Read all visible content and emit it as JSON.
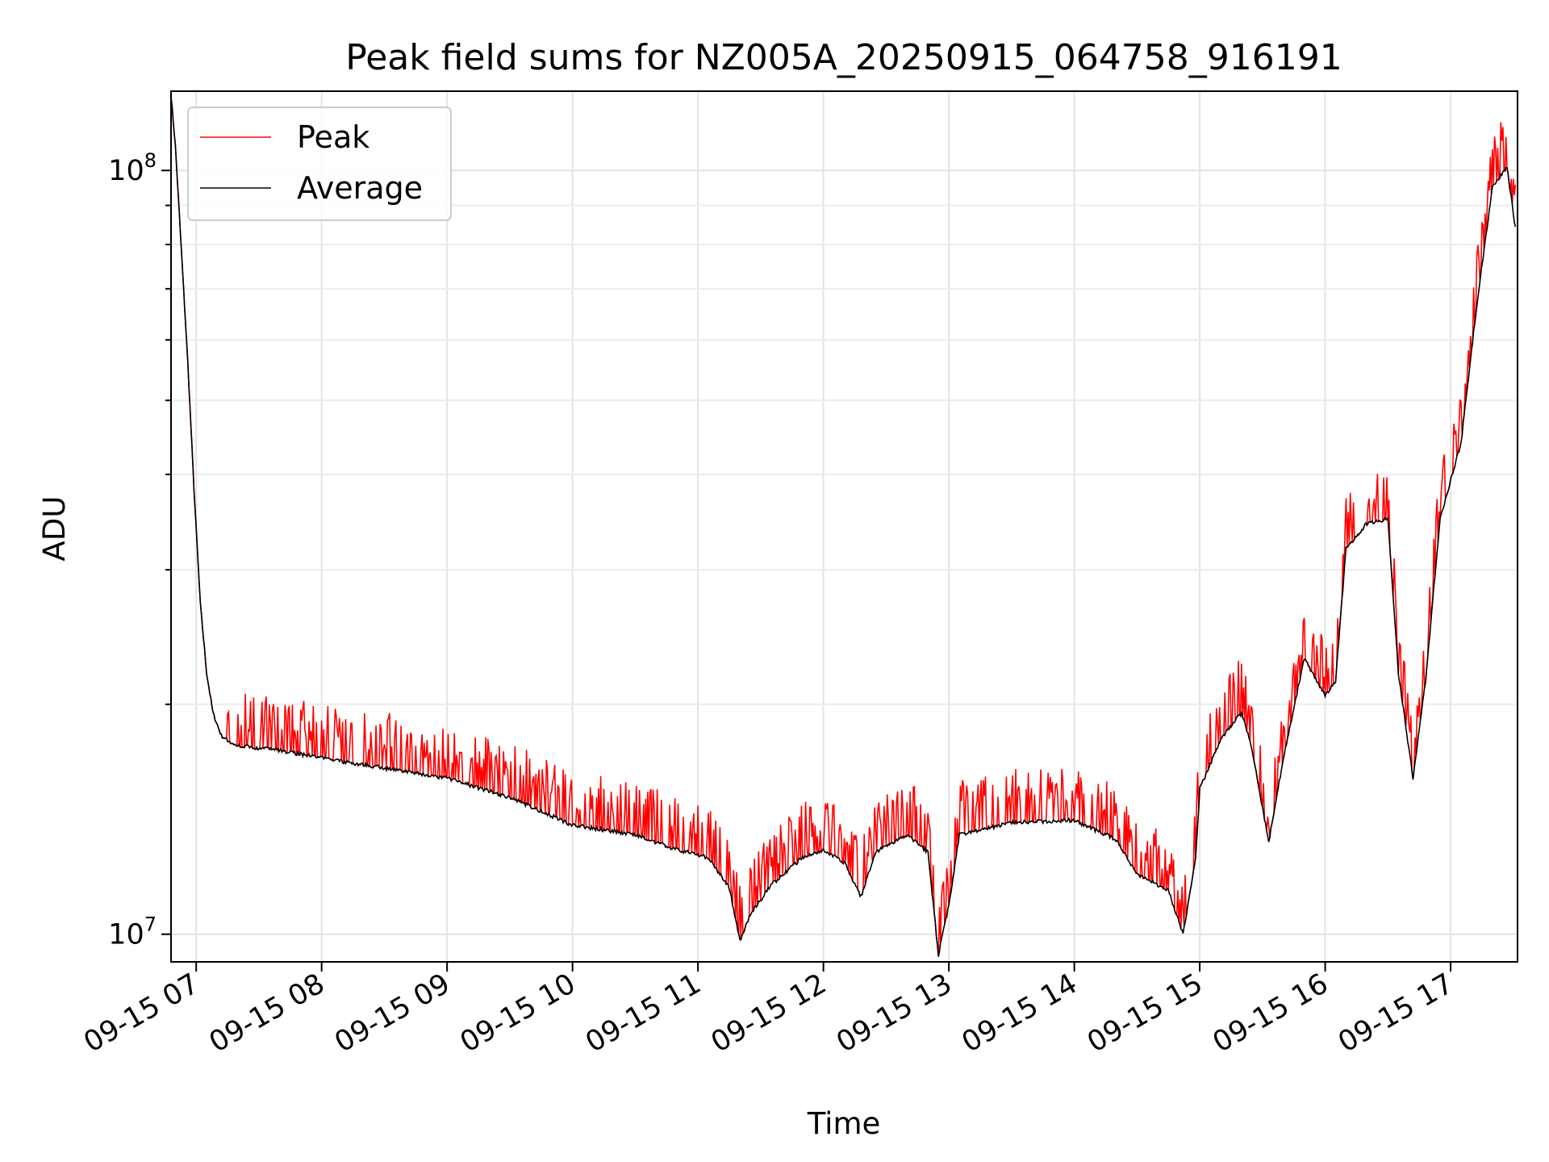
{
  "chart_data": {
    "type": "line",
    "title": "Peak field sums for NZ005A_20250915_064758_916191",
    "xlabel": "Time",
    "ylabel": "ADU",
    "y_scale": "log",
    "ylim": [
      9200000,
      127000000
    ],
    "xlim": [
      "2025-09-15 06:47:58",
      "2025-09-15 17:32:00"
    ],
    "x_ticks": [
      {
        "t": "2025-09-15 07:00",
        "label": "09-15 07"
      },
      {
        "t": "2025-09-15 08:00",
        "label": "09-15 08"
      },
      {
        "t": "2025-09-15 09:00",
        "label": "09-15 09"
      },
      {
        "t": "2025-09-15 10:00",
        "label": "09-15 10"
      },
      {
        "t": "2025-09-15 11:00",
        "label": "09-15 11"
      },
      {
        "t": "2025-09-15 12:00",
        "label": "09-15 12"
      },
      {
        "t": "2025-09-15 13:00",
        "label": "09-15 13"
      },
      {
        "t": "2025-09-15 14:00",
        "label": "09-15 14"
      },
      {
        "t": "2025-09-15 15:00",
        "label": "09-15 15"
      },
      {
        "t": "2025-09-15 16:00",
        "label": "09-15 16"
      },
      {
        "t": "2025-09-15 17:00",
        "label": "09-15 17"
      }
    ],
    "y_ticks": [
      {
        "value": 10000000,
        "base": "10",
        "exp": "7"
      },
      {
        "value": 100000000,
        "base": "10",
        "exp": "8"
      }
    ],
    "grid": true,
    "legend_position": "top-left",
    "series": [
      {
        "name": "Average",
        "color": "#000000",
        "points": [
          [
            "2025-09-15 06:48",
            125000000
          ],
          [
            "2025-09-15 06:50",
            108000000
          ],
          [
            "2025-09-15 06:53",
            78000000
          ],
          [
            "2025-09-15 06:56",
            56000000
          ],
          [
            "2025-09-15 06:59",
            38000000
          ],
          [
            "2025-09-15 07:02",
            27000000
          ],
          [
            "2025-09-15 07:05",
            22000000
          ],
          [
            "2025-09-15 07:08",
            19500000
          ],
          [
            "2025-09-15 07:12",
            18200000
          ],
          [
            "2025-09-15 07:18",
            17700000
          ],
          [
            "2025-09-15 07:40",
            17400000
          ],
          [
            "2025-09-15 08:00",
            17000000
          ],
          [
            "2025-09-15 08:30",
            16500000
          ],
          [
            "2025-09-15 09:00",
            16000000
          ],
          [
            "2025-09-15 09:30",
            15100000
          ],
          [
            "2025-09-15 10:00",
            13900000
          ],
          [
            "2025-09-15 10:30",
            13500000
          ],
          [
            "2025-09-15 10:50",
            12900000
          ],
          [
            "2025-09-15 11:05",
            12600000
          ],
          [
            "2025-09-15 11:15",
            11500000
          ],
          [
            "2025-09-15 11:20",
            9800000
          ],
          [
            "2025-09-15 11:25",
            10600000
          ],
          [
            "2025-09-15 11:35",
            11600000
          ],
          [
            "2025-09-15 11:50",
            12600000
          ],
          [
            "2025-09-15 12:00",
            12900000
          ],
          [
            "2025-09-15 12:10",
            12400000
          ],
          [
            "2025-09-15 12:18",
            11200000
          ],
          [
            "2025-09-15 12:25",
            12800000
          ],
          [
            "2025-09-15 12:40",
            13500000
          ],
          [
            "2025-09-15 12:50",
            12800000
          ],
          [
            "2025-09-15 12:55",
            9400000
          ],
          [
            "2025-09-15 13:00",
            10900000
          ],
          [
            "2025-09-15 13:05",
            13500000
          ],
          [
            "2025-09-15 13:30",
            14000000
          ],
          [
            "2025-09-15 14:00",
            14100000
          ],
          [
            "2025-09-15 14:20",
            13300000
          ],
          [
            "2025-09-15 14:30",
            12000000
          ],
          [
            "2025-09-15 14:45",
            11400000
          ],
          [
            "2025-09-15 14:52",
            10000000
          ],
          [
            "2025-09-15 14:58",
            12500000
          ],
          [
            "2025-09-15 15:00",
            15500000
          ],
          [
            "2025-09-15 15:10",
            18000000
          ],
          [
            "2025-09-15 15:20",
            19500000
          ],
          [
            "2025-09-15 15:25",
            17500000
          ],
          [
            "2025-09-15 15:33",
            13200000
          ],
          [
            "2025-09-15 15:40",
            17000000
          ],
          [
            "2025-09-15 15:50",
            23000000
          ],
          [
            "2025-09-15 16:00",
            20500000
          ],
          [
            "2025-09-15 16:05",
            21500000
          ],
          [
            "2025-09-15 16:10",
            32000000
          ],
          [
            "2025-09-15 16:20",
            34500000
          ],
          [
            "2025-09-15 16:30",
            35000000
          ],
          [
            "2025-09-15 16:35",
            22000000
          ],
          [
            "2025-09-15 16:42",
            16000000
          ],
          [
            "2025-09-15 16:48",
            21500000
          ],
          [
            "2025-09-15 16:55",
            35000000
          ],
          [
            "2025-09-15 17:05",
            44000000
          ],
          [
            "2025-09-15 17:12",
            65000000
          ],
          [
            "2025-09-15 17:20",
            95000000
          ],
          [
            "2025-09-15 17:27",
            101000000
          ],
          [
            "2025-09-15 17:31",
            84000000
          ]
        ]
      },
      {
        "name": "Peak",
        "color": "#ff0000",
        "spike_factor_range": [
          1.05,
          1.18
        ]
      }
    ]
  }
}
